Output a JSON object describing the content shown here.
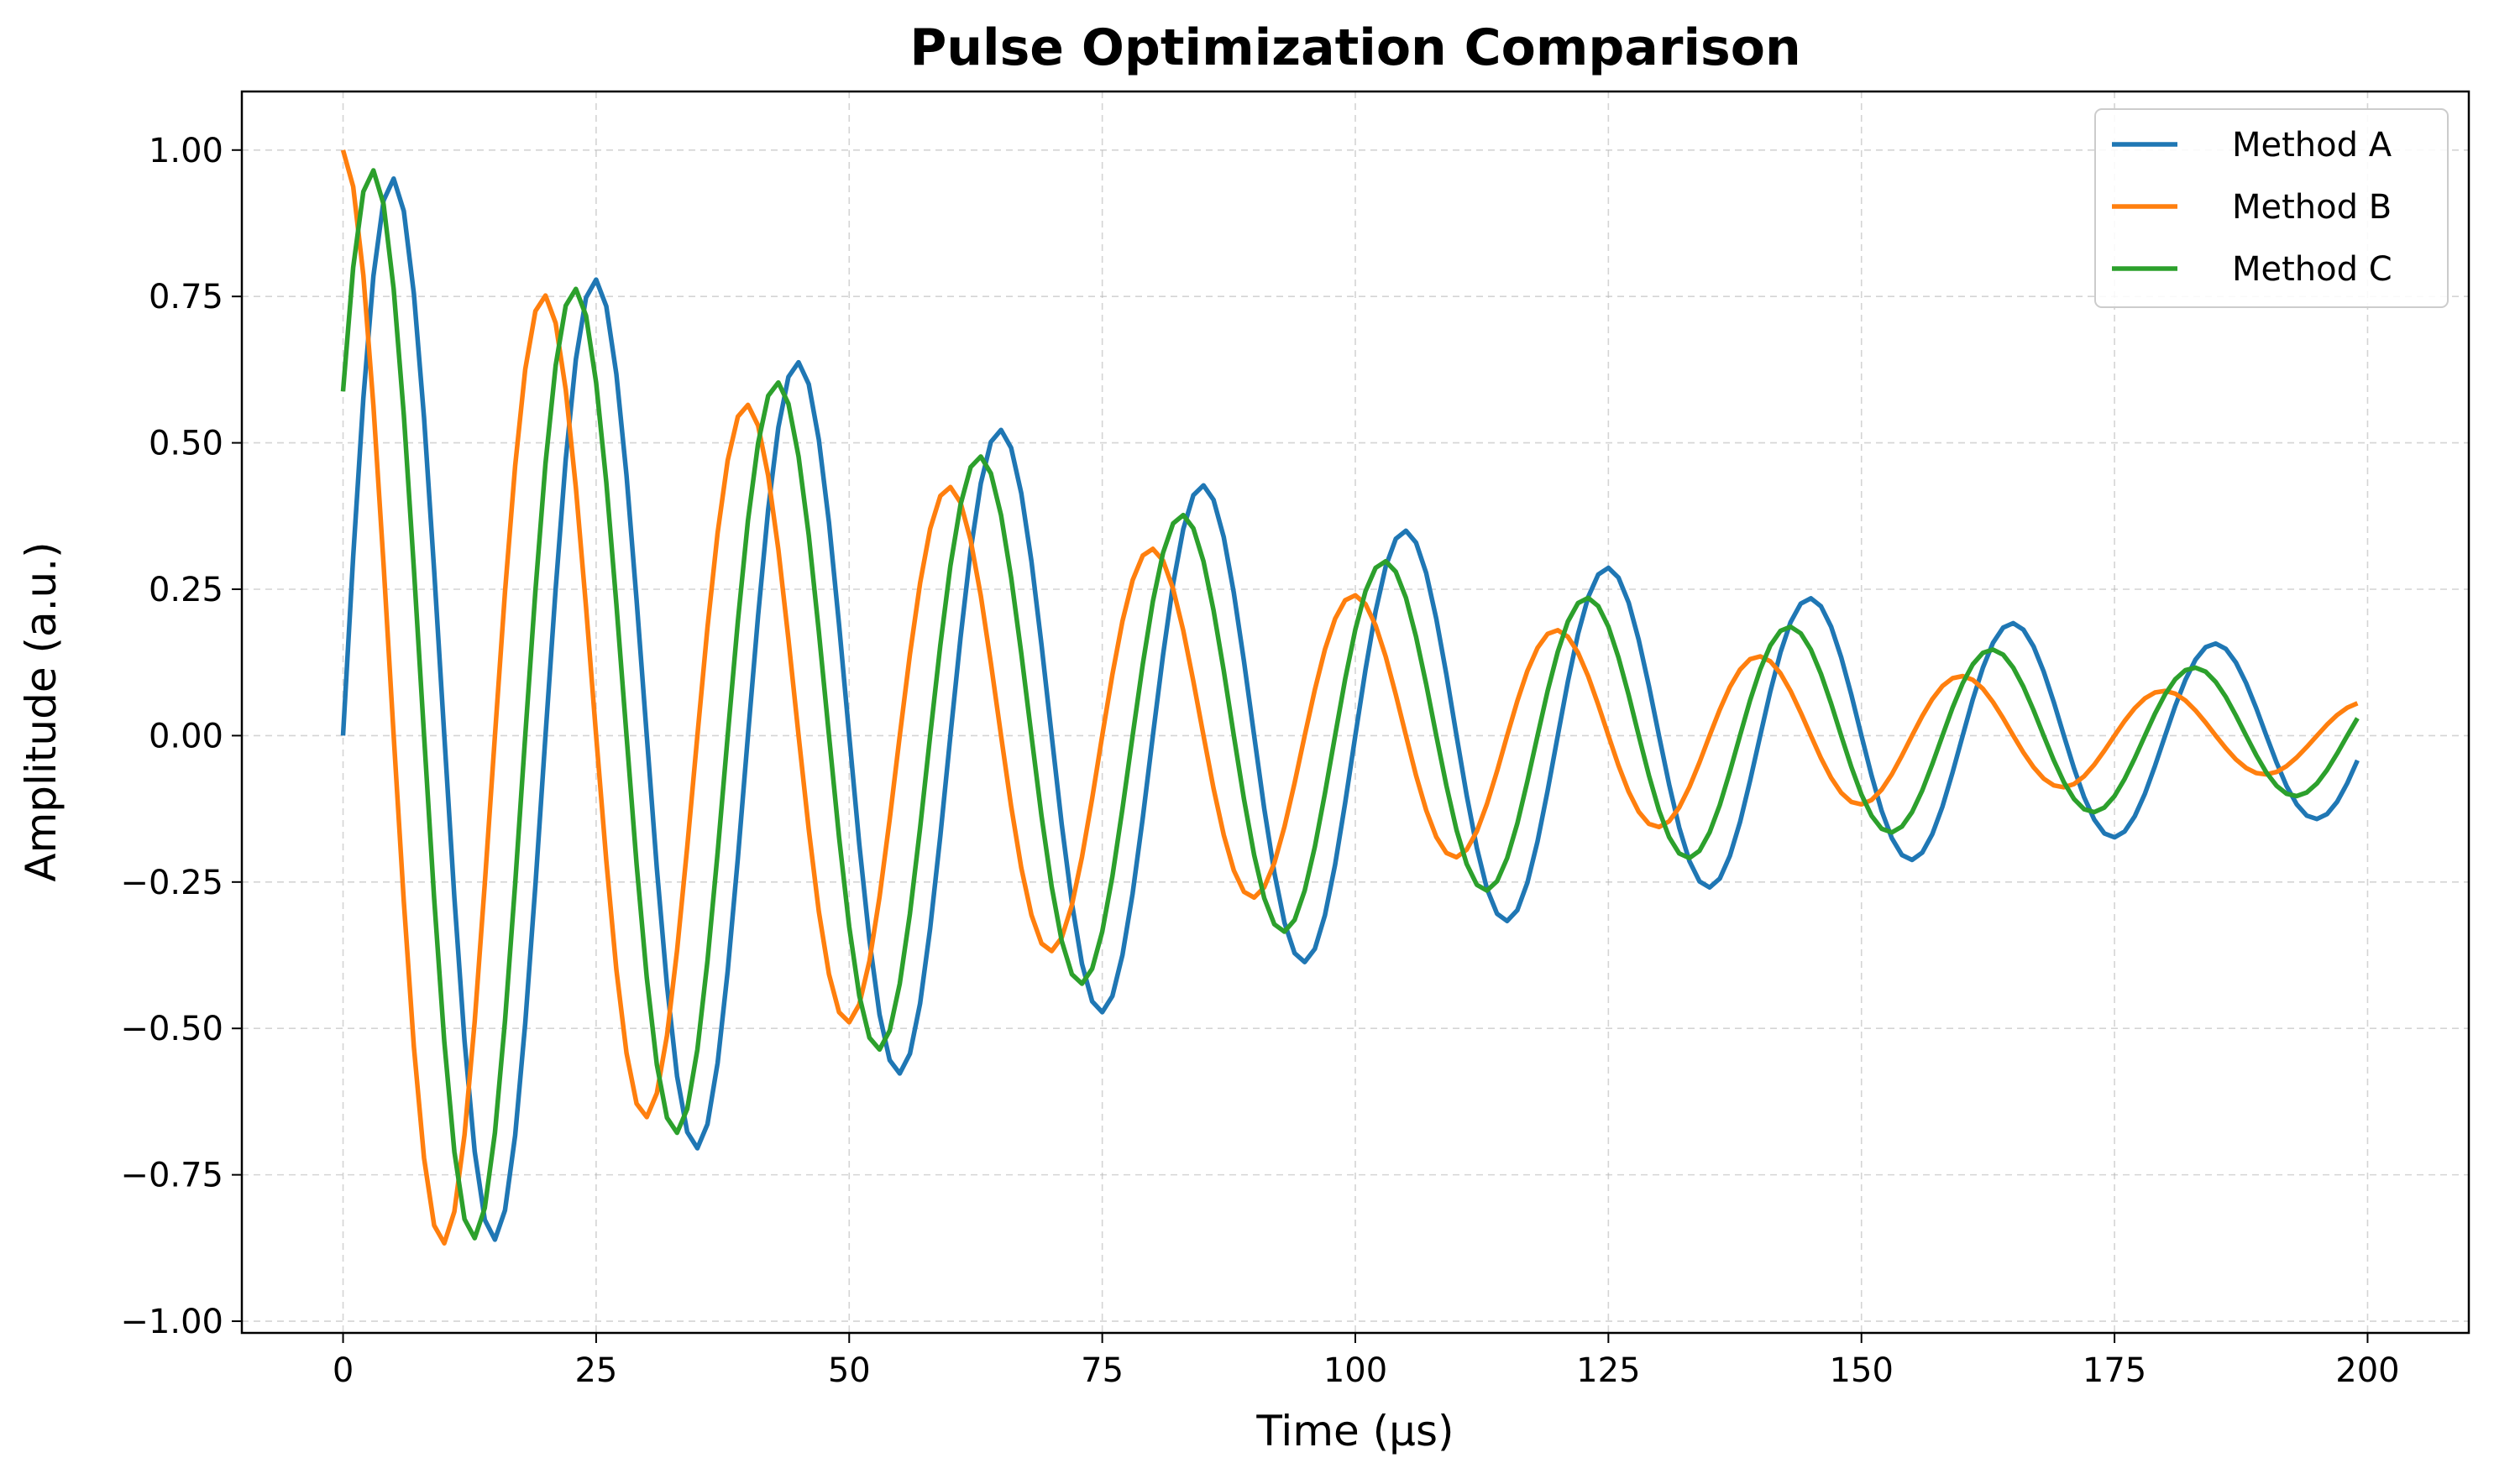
{
  "chart_data": {
    "type": "line",
    "title": "Pulse Optimization Comparison",
    "xlabel": "Time (μs)",
    "ylabel": "Amplitude (a.u.)",
    "xlim": [
      -10,
      210
    ],
    "ylim": [
      -1.02,
      1.1
    ],
    "xticks": [
      0,
      25,
      50,
      75,
      100,
      125,
      150,
      175,
      200
    ],
    "yticks": [
      1.0,
      0.75,
      0.5,
      0.25,
      0.0,
      -0.25,
      -0.5,
      -0.75,
      -1.0
    ],
    "ytick_labels": [
      "1.00",
      "0.75",
      "0.50",
      "0.25",
      "0.00",
      "−0.25",
      "−0.50",
      "−0.75",
      "−1.00"
    ],
    "grid": true,
    "legend_position": "top-right",
    "x_range": [
      0,
      199
    ],
    "x_step": 1,
    "series": [
      {
        "name": "Method A",
        "color": "#1f77b4",
        "amplitude": 1.0,
        "decay_time_us": 100,
        "period_us": 20,
        "phase": "sine"
      },
      {
        "name": "Method B",
        "color": "#ff7f0e",
        "amplitude": 1.0,
        "decay_time_us": 70,
        "period_us": 20,
        "phase": "cosine"
      },
      {
        "name": "Method C",
        "color": "#2ca02c",
        "amplitude": 1.0,
        "decay_time_us": 85,
        "period_us": 20,
        "phase_offset_us": 3
      }
    ]
  }
}
